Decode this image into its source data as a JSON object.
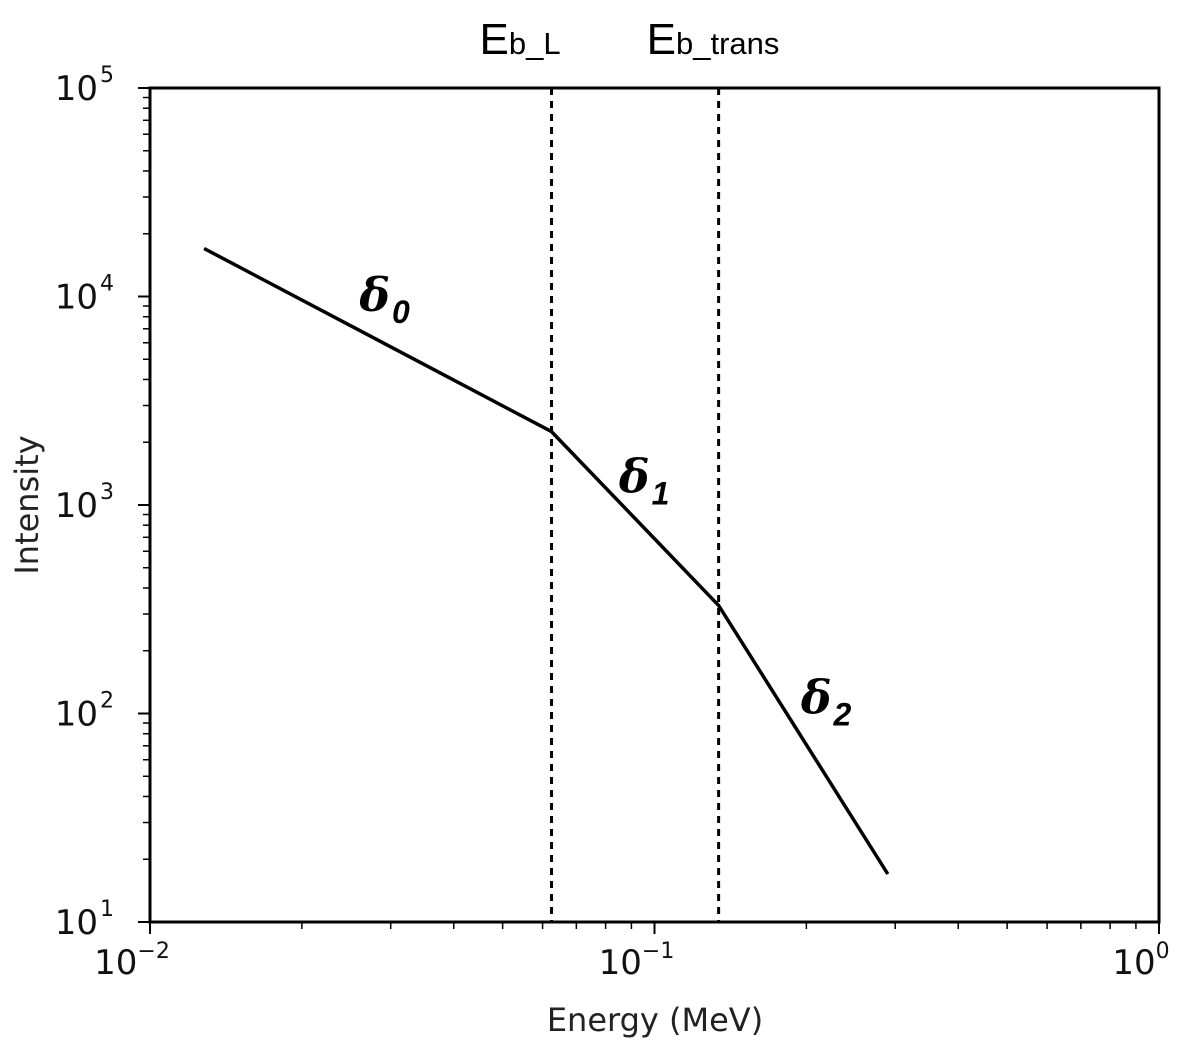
{
  "chart_data": {
    "type": "line",
    "xlabel": "Energy (MeV)",
    "ylabel": "Intensity",
    "x_scale": "log",
    "y_scale": "log",
    "xlim": [
      0.01,
      1
    ],
    "ylim": [
      10,
      100000
    ],
    "x_ticks": [
      {
        "base": "10",
        "exp": "−2",
        "value": 0.01
      },
      {
        "base": "10",
        "exp": "−1",
        "value": 0.1
      },
      {
        "base": "10",
        "exp": "0",
        "value": 1
      }
    ],
    "y_ticks": [
      {
        "base": "10",
        "exp": "1",
        "value": 10
      },
      {
        "base": "10",
        "exp": "2",
        "value": 100
      },
      {
        "base": "10",
        "exp": "3",
        "value": 1000
      },
      {
        "base": "10",
        "exp": "4",
        "value": 10000
      },
      {
        "base": "10",
        "exp": "5",
        "value": 100000
      }
    ],
    "series": [
      {
        "x": [
          0.0128,
          0.0625,
          0.134,
          0.29
        ],
        "y": [
          17000,
          2250,
          330,
          17
        ]
      }
    ],
    "vlines": [
      {
        "x": 0.0625,
        "label_main": "E",
        "label_sub": "b_L"
      },
      {
        "x": 0.134,
        "label_main": "E",
        "label_sub": "b_trans"
      }
    ],
    "segment_labels": [
      {
        "symbol": "δ",
        "sub": "0",
        "x": 0.026,
        "y": 8500
      },
      {
        "symbol": "δ",
        "sub": "1",
        "x": 0.085,
        "y": 1150
      },
      {
        "symbol": "δ",
        "sub": "2",
        "x": 0.195,
        "y": 100
      }
    ],
    "grid": false,
    "line_color": "#000000"
  }
}
